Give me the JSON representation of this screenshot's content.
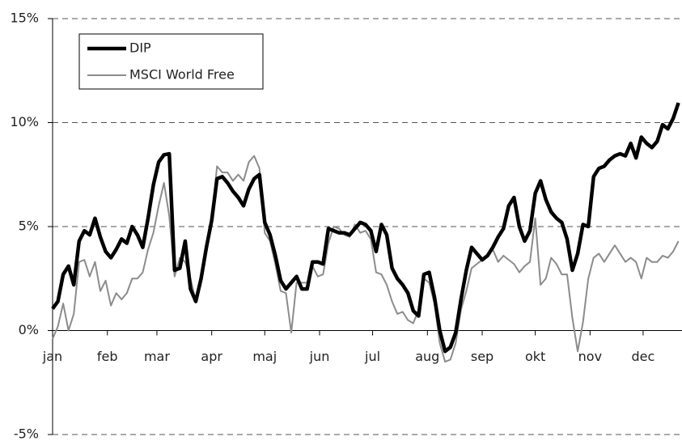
{
  "chart_data": {
    "type": "line",
    "x": [
      0,
      3,
      6,
      9,
      12,
      15,
      18,
      21,
      24,
      27,
      30,
      33,
      36,
      39,
      42,
      45,
      48,
      51,
      54,
      57,
      60,
      63,
      66,
      69,
      72,
      75,
      78,
      81,
      84,
      87,
      90,
      93,
      96,
      99,
      102,
      105,
      108,
      111,
      114,
      117,
      120,
      123,
      126,
      129,
      132,
      135,
      138,
      141,
      144,
      147,
      150,
      153,
      156,
      159,
      162,
      165,
      168,
      171,
      174,
      177,
      180,
      183,
      186,
      189,
      192,
      195,
      198,
      201,
      204,
      207,
      210,
      213,
      216,
      219,
      222,
      225,
      228,
      231,
      234,
      237,
      240,
      243,
      246,
      249,
      252,
      255,
      258,
      261,
      264,
      267,
      270,
      273,
      276,
      279,
      282,
      285,
      288,
      291,
      294,
      297,
      300,
      303,
      306,
      309,
      312,
      315,
      318,
      321,
      324,
      327,
      330,
      333,
      336,
      339,
      342,
      345,
      348,
      351,
      354
    ],
    "series": [
      {
        "name": "DIP",
        "color": "#000000",
        "line_width": 4.5,
        "values": [
          1.05,
          1.4,
          2.7,
          3.1,
          2.2,
          4.3,
          4.8,
          4.6,
          5.4,
          4.5,
          3.8,
          3.5,
          3.9,
          4.4,
          4.2,
          5.0,
          4.6,
          4.0,
          5.4,
          7.0,
          8.1,
          8.45,
          8.5,
          2.9,
          3.0,
          4.3,
          2.0,
          1.4,
          2.5,
          4.0,
          5.3,
          7.3,
          7.4,
          7.1,
          6.7,
          6.4,
          6.0,
          6.8,
          7.3,
          7.5,
          5.2,
          4.6,
          3.6,
          2.4,
          2.0,
          2.3,
          2.6,
          2.0,
          2.0,
          3.3,
          3.3,
          3.2,
          4.9,
          4.8,
          4.7,
          4.7,
          4.6,
          4.9,
          5.2,
          5.1,
          4.8,
          3.8,
          5.1,
          4.6,
          3.0,
          2.5,
          2.2,
          1.8,
          0.95,
          0.7,
          2.7,
          2.8,
          1.6,
          0.0,
          -1.0,
          -0.8,
          -0.1,
          1.5,
          2.9,
          4.0,
          3.7,
          3.4,
          3.6,
          4.0,
          4.5,
          4.9,
          6.0,
          6.4,
          5.0,
          4.3,
          4.8,
          6.6,
          7.2,
          6.3,
          5.7,
          5.4,
          5.2,
          4.4,
          2.9,
          3.7,
          5.1,
          5.0,
          7.4,
          7.8,
          7.9,
          8.2,
          8.4,
          8.5,
          8.4,
          9.0,
          8.3,
          9.3,
          9.0,
          8.8,
          9.1,
          9.9,
          9.7,
          10.2,
          10.95
        ]
      },
      {
        "name": "MSCI World Free",
        "color": "#8c8c8c",
        "line_width": 2,
        "values": [
          -0.4,
          0.2,
          1.3,
          0.0,
          0.8,
          3.3,
          3.4,
          2.6,
          3.3,
          1.9,
          2.4,
          1.2,
          1.8,
          1.5,
          1.8,
          2.5,
          2.5,
          2.8,
          3.9,
          4.7,
          6.0,
          7.1,
          5.5,
          2.6,
          3.5,
          3.3,
          2.5,
          1.4,
          2.6,
          4.0,
          5.3,
          7.9,
          7.6,
          7.6,
          7.2,
          7.5,
          7.2,
          8.1,
          8.4,
          7.8,
          4.7,
          4.3,
          3.2,
          1.9,
          1.8,
          -0.1,
          2.3,
          2.3,
          2.3,
          3.1,
          2.6,
          2.7,
          4.2,
          5.0,
          4.9,
          4.6,
          4.5,
          5.1,
          4.7,
          4.8,
          4.4,
          2.8,
          2.7,
          2.2,
          1.4,
          0.8,
          0.9,
          0.5,
          0.35,
          1.0,
          2.5,
          2.3,
          1.3,
          -0.6,
          -1.5,
          -1.4,
          -0.6,
          1.0,
          1.9,
          3.0,
          3.2,
          3.4,
          3.6,
          3.9,
          3.3,
          3.6,
          3.4,
          3.2,
          2.8,
          3.1,
          3.3,
          5.4,
          2.2,
          2.5,
          3.5,
          3.2,
          2.7,
          2.7,
          0.6,
          -1.0,
          0.4,
          2.5,
          3.5,
          3.7,
          3.3,
          3.7,
          4.1,
          3.7,
          3.3,
          3.5,
          3.3,
          2.5,
          3.5,
          3.3,
          3.3,
          3.6,
          3.5,
          3.8,
          4.3
        ]
      }
    ],
    "xlim": [
      0,
      356
    ],
    "xticks": [
      {
        "value": 0,
        "label": "jan"
      },
      {
        "value": 31,
        "label": "feb"
      },
      {
        "value": 59,
        "label": "mar"
      },
      {
        "value": 90,
        "label": "apr"
      },
      {
        "value": 120,
        "label": "maj"
      },
      {
        "value": 151,
        "label": "jun"
      },
      {
        "value": 181,
        "label": "jul"
      },
      {
        "value": 212,
        "label": "aug"
      },
      {
        "value": 243,
        "label": "sep"
      },
      {
        "value": 273,
        "label": "okt"
      },
      {
        "value": 304,
        "label": "nov"
      },
      {
        "value": 334,
        "label": "dec"
      }
    ],
    "ylim": [
      -5,
      15
    ],
    "yticks": [
      {
        "value": -5,
        "label": "-5%"
      },
      {
        "value": 0,
        "label": "0%"
      },
      {
        "value": 5,
        "label": "5%"
      },
      {
        "value": 10,
        "label": "10%"
      },
      {
        "value": 15,
        "label": "15%"
      }
    ],
    "grid": true
  }
}
